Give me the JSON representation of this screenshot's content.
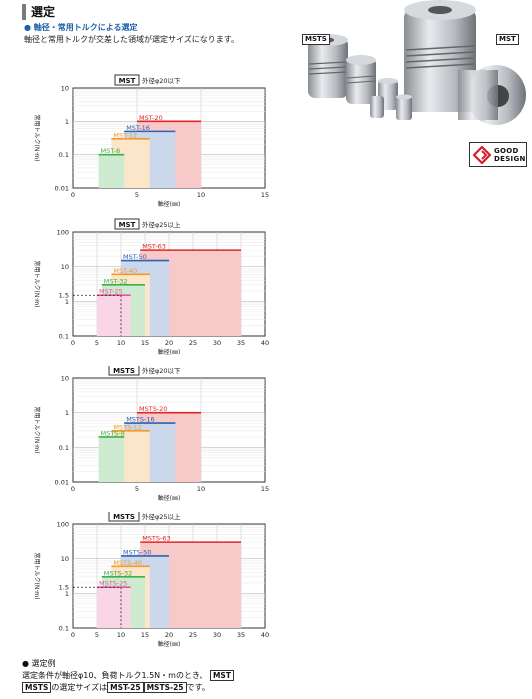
{
  "header": {
    "title": "選定",
    "subheading": "● 軸径・常用トルクによる選定",
    "description": "軸径と常用トルクが交差した領域が選定サイズになります。"
  },
  "product_tags": {
    "left": "MSTS",
    "right": "MST"
  },
  "logo": {
    "line1": "GOOD",
    "line2": "DESIGN"
  },
  "chart_data": [
    {
      "type": "area",
      "title_box": "MST",
      "title_text": "外径φ20以下",
      "xlabel": "軸径(㎜)",
      "ylabel": "常用トルク(N·m)",
      "xlim": [
        0,
        15
      ],
      "ylim": [
        0.01,
        10
      ],
      "yscale": "log",
      "x_ticks": [
        "0",
        "5",
        "10",
        "15"
      ],
      "y_ticks": [
        "0.01",
        "0.1",
        "1",
        "10"
      ],
      "grid": true,
      "series": [
        {
          "name": "MST-8",
          "x": [
            2,
            4
          ],
          "y": 0.1,
          "color": "#3cb049"
        },
        {
          "name": "MST-12",
          "x": [
            3,
            6
          ],
          "y": 0.3,
          "color": "#f39a2b"
        },
        {
          "name": "MST-16",
          "x": [
            4,
            8
          ],
          "y": 0.5,
          "color": "#2f62b0"
        },
        {
          "name": "MST-20",
          "x": [
            5,
            10
          ],
          "y": 1.0,
          "color": "#e02525"
        }
      ]
    },
    {
      "type": "area",
      "title_box": "MST",
      "title_text": "外径φ25以上",
      "xlabel": "軸径(㎜)",
      "ylabel": "常用トルク(N·m)",
      "xlim": [
        0,
        40
      ],
      "ylim": [
        0.1,
        100
      ],
      "yscale": "log",
      "x_ticks": [
        "0",
        "5",
        "10",
        "15",
        "20",
        "25",
        "30",
        "35",
        "40"
      ],
      "y_ticks": [
        "0.1",
        "1",
        "1.5",
        "10",
        "100"
      ],
      "grid": true,
      "example": {
        "x": 10,
        "y": 1.5
      },
      "series": [
        {
          "name": "MST-25",
          "x": [
            5,
            12
          ],
          "y": 1.5,
          "color": "#e8559b"
        },
        {
          "name": "MST-32",
          "x": [
            6,
            15
          ],
          "y": 3,
          "color": "#3cb049"
        },
        {
          "name": "MST-40",
          "x": [
            8,
            16
          ],
          "y": 6,
          "color": "#f39a2b"
        },
        {
          "name": "MST-50",
          "x": [
            10,
            20
          ],
          "y": 15,
          "color": "#2f62b0"
        },
        {
          "name": "MST-63",
          "x": [
            14,
            35
          ],
          "y": 30,
          "color": "#e02525"
        }
      ]
    },
    {
      "type": "area",
      "title_box": "MSTS",
      "title_text": "外径φ20以下",
      "xlabel": "軸径(㎜)",
      "ylabel": "常用トルク(N·m)",
      "xlim": [
        0,
        15
      ],
      "ylim": [
        0.01,
        10
      ],
      "yscale": "log",
      "x_ticks": [
        "0",
        "5",
        "10",
        "15"
      ],
      "y_ticks": [
        "0.01",
        "0.1",
        "1",
        "10"
      ],
      "grid": true,
      "series": [
        {
          "name": "MSTS-8",
          "x": [
            2,
            4
          ],
          "y": 0.2,
          "color": "#3cb049"
        },
        {
          "name": "MSTS-12",
          "x": [
            3,
            6
          ],
          "y": 0.3,
          "color": "#f39a2b"
        },
        {
          "name": "MSTS-16",
          "x": [
            4,
            8
          ],
          "y": 0.5,
          "color": "#2f62b0"
        },
        {
          "name": "MSTS-20",
          "x": [
            5,
            10
          ],
          "y": 1.0,
          "color": "#e02525"
        }
      ]
    },
    {
      "type": "area",
      "title_box": "MSTS",
      "title_text": "外径φ25以上",
      "xlabel": "軸径(㎜)",
      "ylabel": "常用トルク(N·m)",
      "xlim": [
        0,
        40
      ],
      "ylim": [
        0.1,
        100
      ],
      "yscale": "log",
      "x_ticks": [
        "0",
        "5",
        "10",
        "15",
        "20",
        "25",
        "30",
        "35",
        "40"
      ],
      "y_ticks": [
        "0.1",
        "1",
        "1.5",
        "10",
        "100"
      ],
      "grid": true,
      "example": {
        "x": 10,
        "y": 1.5
      },
      "series": [
        {
          "name": "MSTS-25",
          "x": [
            5,
            12
          ],
          "y": 1.5,
          "color": "#e8559b"
        },
        {
          "name": "MSTS-32",
          "x": [
            6,
            15
          ],
          "y": 3,
          "color": "#3cb049"
        },
        {
          "name": "MSTS-40",
          "x": [
            8,
            16
          ],
          "y": 6,
          "color": "#f39a2b"
        },
        {
          "name": "MSTS-50",
          "x": [
            10,
            20
          ],
          "y": 12,
          "color": "#2f62b0"
        },
        {
          "name": "MSTS-63",
          "x": [
            14,
            35
          ],
          "y": 30,
          "color": "#e02525"
        }
      ]
    }
  ],
  "example": {
    "heading": "● 選定例",
    "line1": "選定条件が軸径φ10、負荷トルク1.5N・mのとき、",
    "line1_box": "MST",
    "line2_box1": "MSTS",
    "line2_text1": "の選定サイズは",
    "line2_box2": "MST-25",
    "line2_box3": "MSTS-25",
    "line2_text2": "です。"
  }
}
